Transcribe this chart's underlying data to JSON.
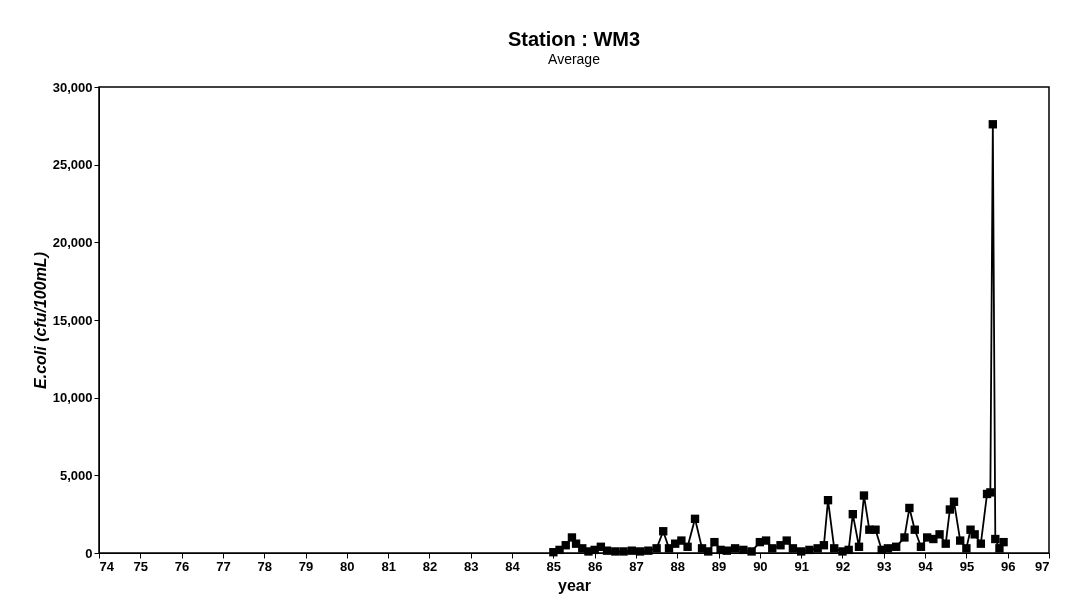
{
  "chart_data": {
    "type": "line",
    "title": "Station : WM3",
    "subtitle": "Average",
    "xlabel": "year",
    "ylabel": "E.coli (cfu/100mL)",
    "x": [
      85.0,
      85.15,
      85.3,
      85.45,
      85.55,
      85.7,
      85.85,
      86.0,
      86.15,
      86.3,
      86.5,
      86.7,
      86.9,
      87.1,
      87.3,
      87.5,
      87.66,
      87.8,
      87.95,
      88.1,
      88.25,
      88.43,
      88.6,
      88.75,
      88.9,
      89.05,
      89.2,
      89.4,
      89.6,
      89.8,
      90.0,
      90.15,
      90.3,
      90.5,
      90.65,
      90.8,
      91.0,
      91.2,
      91.4,
      91.55,
      91.65,
      91.8,
      92.0,
      92.15,
      92.25,
      92.4,
      92.52,
      92.65,
      92.8,
      92.95,
      93.1,
      93.3,
      93.5,
      93.62,
      93.75,
      93.9,
      94.05,
      94.2,
      94.35,
      94.5,
      94.6,
      94.7,
      94.85,
      95.0,
      95.1,
      95.2,
      95.35,
      95.5,
      95.58,
      95.64,
      95.7,
      95.8,
      95.9
    ],
    "values": [
      50,
      200,
      500,
      1000,
      600,
      300,
      100,
      200,
      400,
      150,
      100,
      100,
      150,
      100,
      150,
      300,
      1400,
      300,
      600,
      800,
      400,
      2200,
      300,
      100,
      700,
      200,
      150,
      300,
      200,
      100,
      700,
      800,
      300,
      500,
      800,
      300,
      100,
      200,
      300,
      500,
      3400,
      300,
      100,
      200,
      2500,
      400,
      3700,
      1500,
      1500,
      200,
      300,
      400,
      1000,
      2900,
      1500,
      400,
      1000,
      900,
      1200,
      600,
      2800,
      3300,
      800,
      300,
      1500,
      1200,
      600,
      3800,
      3900,
      27600,
      900,
      300,
      700
    ],
    "color": "#000000",
    "marker": "square",
    "line_style": "solid",
    "grid": false,
    "xlim": [
      74,
      97
    ],
    "xticks": [
      74,
      75,
      76,
      77,
      78,
      79,
      80,
      81,
      82,
      83,
      84,
      85,
      86,
      87,
      88,
      89,
      90,
      91,
      92,
      93,
      94,
      95,
      96,
      97
    ],
    "ylim": [
      0,
      30000
    ],
    "yticks": [
      0,
      {
        "value": 5000,
        "label": "5,000"
      },
      {
        "value": 10000,
        "label": "10,000"
      },
      {
        "value": 15000,
        "label": "15,000"
      },
      {
        "value": 20000,
        "label": "20,000"
      },
      {
        "value": 25000,
        "label": "25,000"
      },
      {
        "value": 30000,
        "label": "30,000"
      }
    ]
  }
}
